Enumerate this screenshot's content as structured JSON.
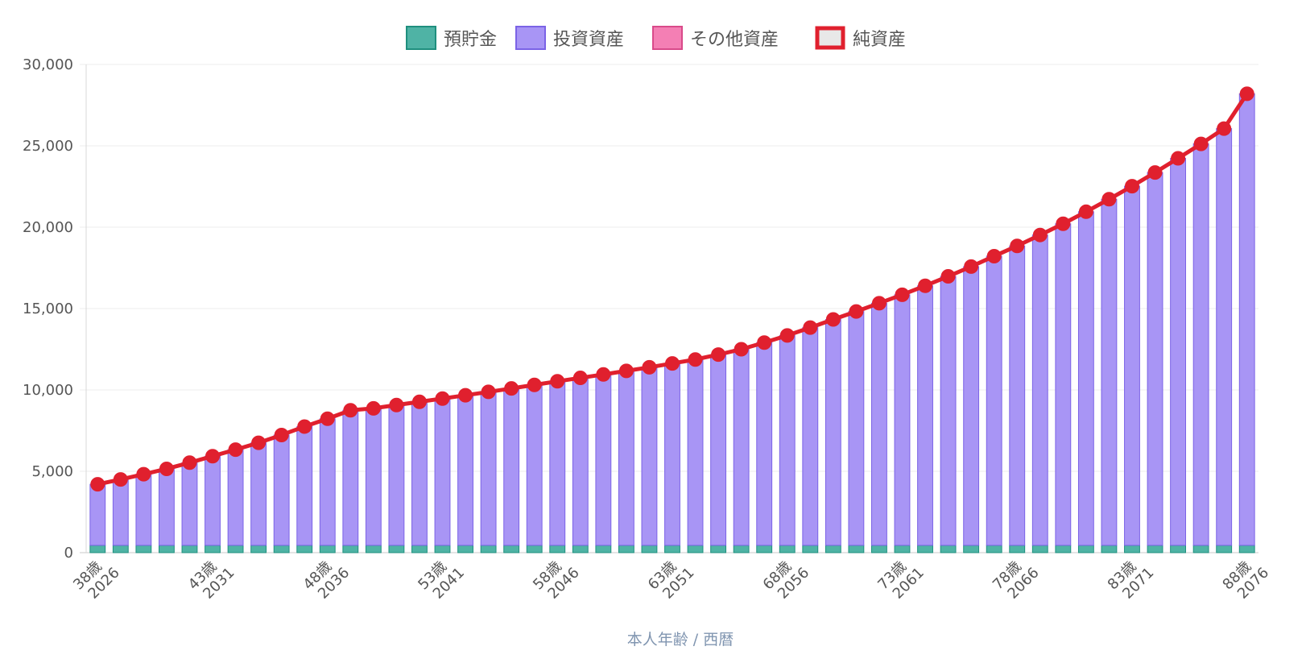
{
  "chart_data": {
    "type": "bar",
    "title": "",
    "xlabel": "本人年齢 / 西暦",
    "ylabel": "",
    "ylim": [
      0,
      30000
    ],
    "yticks": [
      "0",
      "5,000",
      "10,000",
      "15,000",
      "20,000",
      "25,000",
      "30,000"
    ],
    "ytick_values": [
      0,
      5000,
      10000,
      15000,
      20000,
      25000,
      30000
    ],
    "grid": true,
    "legend_position": "top",
    "categories": [
      "38歳 2026",
      "39歳 2027",
      "40歳 2028",
      "41歳 2029",
      "42歳 2030",
      "43歳 2031",
      "44歳 2032",
      "45歳 2033",
      "46歳 2034",
      "47歳 2035",
      "48歳 2036",
      "49歳 2037",
      "50歳 2038",
      "51歳 2039",
      "52歳 2040",
      "53歳 2041",
      "54歳 2042",
      "55歳 2043",
      "56歳 2044",
      "57歳 2045",
      "58歳 2046",
      "59歳 2047",
      "60歳 2048",
      "61歳 2049",
      "62歳 2050",
      "63歳 2051",
      "64歳 2052",
      "65歳 2053",
      "66歳 2054",
      "67歳 2055",
      "68歳 2056",
      "69歳 2057",
      "70歳 2058",
      "71歳 2059",
      "72歳 2060",
      "73歳 2061",
      "74歳 2062",
      "75歳 2063",
      "76歳 2064",
      "77歳 2065",
      "78歳 2066",
      "79歳 2067",
      "80歳 2068",
      "81歳 2069",
      "82歳 2070",
      "83歳 2071",
      "84歳 2072",
      "85歳 2073",
      "86歳 2074",
      "87歳 2075",
      "88歳 2076"
    ],
    "tick_labels": [
      {
        "index": 0,
        "age": "38歳",
        "year": "2026"
      },
      {
        "index": 5,
        "age": "43歳",
        "year": "2031"
      },
      {
        "index": 10,
        "age": "48歳",
        "year": "2036"
      },
      {
        "index": 15,
        "age": "53歳",
        "year": "2041"
      },
      {
        "index": 20,
        "age": "58歳",
        "year": "2046"
      },
      {
        "index": 25,
        "age": "63歳",
        "year": "2051"
      },
      {
        "index": 30,
        "age": "68歳",
        "year": "2056"
      },
      {
        "index": 35,
        "age": "73歳",
        "year": "2061"
      },
      {
        "index": 40,
        "age": "78歳",
        "year": "2066"
      },
      {
        "index": 45,
        "age": "83歳",
        "year": "2071"
      },
      {
        "index": 50,
        "age": "88歳",
        "year": "2076"
      }
    ],
    "series": [
      {
        "name": "預貯金",
        "type": "bar",
        "stack": "assets",
        "fill": "#4fb3a5",
        "stroke": "#1f8f7e",
        "values": [
          450,
          450,
          450,
          450,
          450,
          450,
          450,
          450,
          450,
          450,
          450,
          450,
          450,
          450,
          450,
          450,
          450,
          450,
          450,
          450,
          450,
          450,
          450,
          450,
          450,
          450,
          450,
          450,
          450,
          450,
          450,
          450,
          450,
          450,
          450,
          450,
          450,
          450,
          450,
          450,
          450,
          450,
          450,
          450,
          450,
          450,
          450,
          450,
          450,
          450,
          450
        ]
      },
      {
        "name": "投資資産",
        "type": "bar",
        "stack": "assets",
        "fill": "#a895f5",
        "stroke": "#7b63e6",
        "values": [
          3750,
          4050,
          4370,
          4700,
          5080,
          5480,
          5880,
          6300,
          6780,
          7300,
          7780,
          8300,
          8420,
          8620,
          8820,
          9020,
          9220,
          9430,
          9640,
          9860,
          10080,
          10290,
          10500,
          10720,
          10940,
          11180,
          11420,
          11720,
          12050,
          12460,
          12900,
          13380,
          13880,
          14370,
          14880,
          15400,
          15950,
          16530,
          17130,
          17770,
          18400,
          19070,
          19760,
          20500,
          21270,
          22070,
          22910,
          23780,
          24670,
          25610,
          27750
        ]
      },
      {
        "name": "その他資産",
        "type": "bar",
        "stack": "assets",
        "fill": "#f47fb4",
        "stroke": "#d94a8a",
        "values": [
          0,
          0,
          0,
          0,
          0,
          0,
          0,
          0,
          0,
          0,
          0,
          0,
          0,
          0,
          0,
          0,
          0,
          0,
          0,
          0,
          0,
          0,
          0,
          0,
          0,
          0,
          0,
          0,
          0,
          0,
          0,
          0,
          0,
          0,
          0,
          0,
          0,
          0,
          0,
          0,
          0,
          0,
          0,
          0,
          0,
          0,
          0,
          0,
          0,
          0,
          0
        ]
      },
      {
        "name": "純資産",
        "type": "line",
        "fill": "#e8e8e8",
        "stroke": "#e0202e",
        "values": [
          4200,
          4500,
          4820,
          5150,
          5530,
          5930,
          6330,
          6750,
          7230,
          7750,
          8230,
          8750,
          8870,
          9070,
          9270,
          9470,
          9670,
          9880,
          10090,
          10310,
          10530,
          10740,
          10950,
          11170,
          11390,
          11630,
          11870,
          12170,
          12500,
          12910,
          13350,
          13830,
          14330,
          14820,
          15330,
          15850,
          16400,
          16980,
          17580,
          18220,
          18850,
          19520,
          20210,
          20950,
          21720,
          22520,
          23360,
          24230,
          25120,
          26060,
          28200
        ]
      }
    ]
  }
}
